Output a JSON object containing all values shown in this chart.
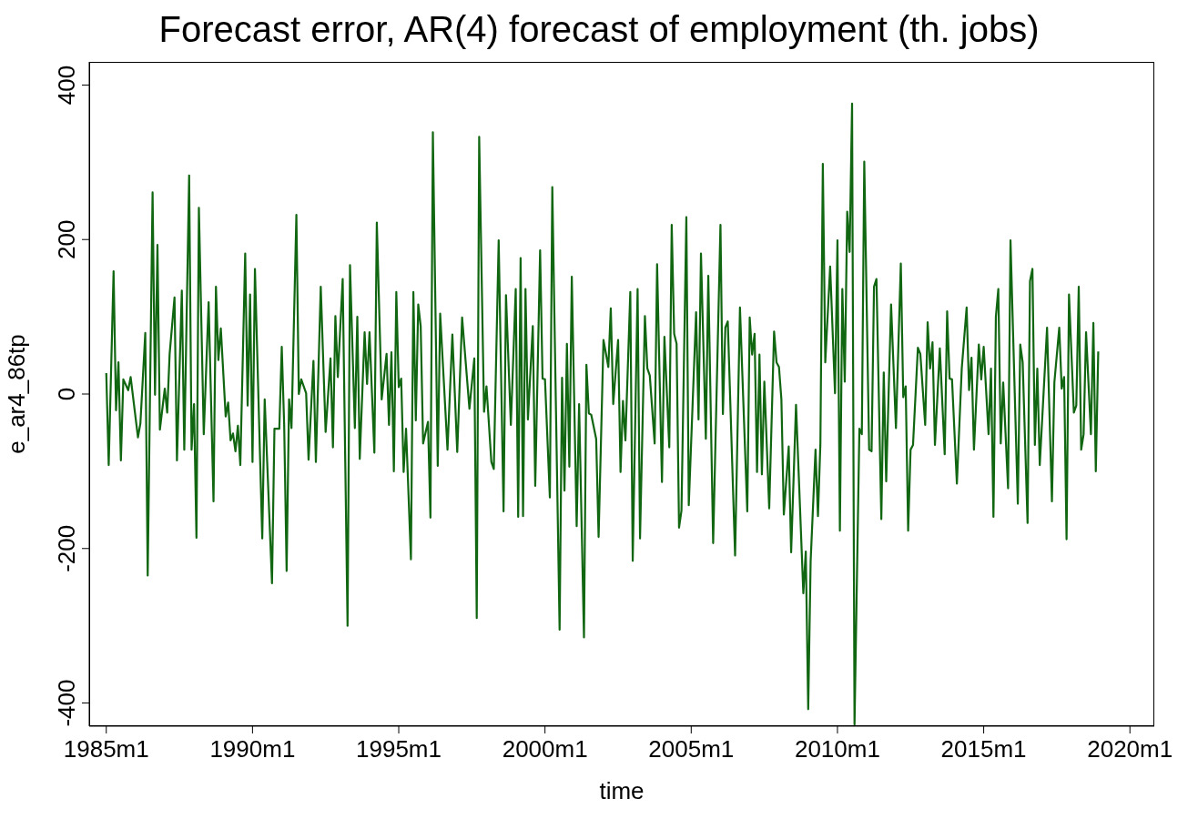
{
  "chart_data": {
    "type": "line",
    "title": "Forecast error, AR(4) forecast of employment (th. jobs)",
    "xlabel": "time",
    "ylabel": "e_ar4_86tp",
    "color": "#116611",
    "x": [
      "1985-01",
      "1985-02",
      "1985-04",
      "1985-05",
      "1985-06",
      "1985-07",
      "1985-08",
      "1985-10",
      "1985-11",
      "1986-02",
      "1986-03",
      "1986-05",
      "1986-06",
      "1986-08",
      "1986-09",
      "1986-10",
      "1986-11",
      "1987-01",
      "1987-02",
      "1987-03",
      "1987-05",
      "1987-06",
      "1987-08",
      "1987-09",
      "1987-11",
      "1987-12",
      "1988-01",
      "1988-02",
      "1988-03",
      "1988-05",
      "1988-07",
      "1988-09",
      "1988-10",
      "1988-11",
      "1988-12",
      "1989-02",
      "1989-03",
      "1989-04",
      "1989-05",
      "1989-06",
      "1989-07",
      "1989-08",
      "1989-10",
      "1989-11",
      "1989-12",
      "1990-01",
      "1990-02",
      "1990-05",
      "1990-06",
      "1990-09",
      "1990-10",
      "1990-12",
      "1991-01",
      "1991-02",
      "1991-03",
      "1991-04",
      "1991-05",
      "1991-07",
      "1991-08",
      "1991-09",
      "1991-11",
      "1991-12",
      "1992-02",
      "1992-03",
      "1992-05",
      "1992-07",
      "1992-09",
      "1992-10",
      "1992-11",
      "1992-12",
      "1993-02",
      "1993-04",
      "1993-05",
      "1993-07",
      "1993-08",
      "1993-09",
      "1993-11",
      "1993-12",
      "1994-01",
      "1994-03",
      "1994-04",
      "1994-06",
      "1994-08",
      "1994-09",
      "1994-10",
      "1994-11",
      "1994-12",
      "1995-01",
      "1995-02",
      "1995-03",
      "1995-04",
      "1995-06",
      "1995-07",
      "1995-08",
      "1995-09",
      "1995-10",
      "1995-11",
      "1996-01",
      "1996-02",
      "1996-03",
      "1996-05",
      "1996-06",
      "1996-09",
      "1996-11",
      "1997-01",
      "1997-03",
      "1997-06",
      "1997-08",
      "1997-09",
      "1997-10",
      "1997-12",
      "1998-01",
      "1998-03",
      "1998-04",
      "1998-06",
      "1998-08",
      "1998-09",
      "1998-11",
      "1999-01",
      "1999-02",
      "1999-03",
      "1999-04",
      "1999-05",
      "1999-06",
      "1999-08",
      "1999-09",
      "1999-11",
      "1999-12",
      "2000-01",
      "2000-03",
      "2000-04",
      "2000-07",
      "2000-08",
      "2000-09",
      "2000-10",
      "2000-11",
      "2000-12",
      "2001-02",
      "2001-03",
      "2001-05",
      "2001-06",
      "2001-07",
      "2001-08",
      "2001-10",
      "2001-11",
      "2002-01",
      "2002-03",
      "2002-04",
      "2002-05",
      "2002-07",
      "2002-08",
      "2002-09",
      "2002-10",
      "2002-12",
      "2003-01",
      "2003-03",
      "2003-04",
      "2003-06",
      "2003-07",
      "2003-08",
      "2003-10",
      "2003-11",
      "2004-01",
      "2004-02",
      "2004-04",
      "2004-05",
      "2004-06",
      "2004-07",
      "2004-08",
      "2004-09",
      "2004-11",
      "2004-12",
      "2005-03",
      "2005-04",
      "2005-05",
      "2005-07",
      "2005-08",
      "2005-10",
      "2006-01",
      "2006-02",
      "2006-03",
      "2006-04",
      "2006-07",
      "2006-09",
      "2006-12",
      "2007-01",
      "2007-02",
      "2007-03",
      "2007-04",
      "2007-05",
      "2007-06",
      "2007-07",
      "2007-09",
      "2007-11",
      "2007-12",
      "2008-01",
      "2008-02",
      "2008-03",
      "2008-05",
      "2008-06",
      "2008-08",
      "2008-11",
      "2008-12",
      "2009-01",
      "2009-02",
      "2009-04",
      "2009-05",
      "2009-06",
      "2009-07",
      "2009-08",
      "2009-10",
      "2009-12",
      "2010-01",
      "2010-02",
      "2010-03",
      "2010-04",
      "2010-05",
      "2010-06",
      "2010-07",
      "2010-08",
      "2010-10",
      "2010-11",
      "2010-12",
      "2011-02",
      "2011-03",
      "2011-04",
      "2011-05",
      "2011-07",
      "2011-08",
      "2011-09",
      "2011-11",
      "2012-01",
      "2012-03",
      "2012-04",
      "2012-05",
      "2012-06",
      "2012-07",
      "2012-08",
      "2012-10",
      "2012-11",
      "2013-01",
      "2013-02",
      "2013-03",
      "2013-04",
      "2013-05",
      "2013-07",
      "2013-09",
      "2013-10",
      "2013-11",
      "2013-12",
      "2014-02",
      "2014-04",
      "2014-06",
      "2014-07",
      "2014-08",
      "2014-09",
      "2014-11",
      "2014-12",
      "2015-01",
      "2015-03",
      "2015-04",
      "2015-05",
      "2015-06",
      "2015-07",
      "2015-08",
      "2015-09",
      "2015-11",
      "2015-12",
      "2016-03",
      "2016-04",
      "2016-05",
      "2016-07",
      "2016-08",
      "2016-09",
      "2016-10",
      "2016-11",
      "2016-12",
      "2017-03",
      "2017-05",
      "2017-06",
      "2017-08",
      "2017-09",
      "2017-10",
      "2017-11",
      "2017-12",
      "2018-02",
      "2018-03",
      "2018-04",
      "2018-05",
      "2018-06",
      "2018-07",
      "2018-09",
      "2018-10",
      "2018-11",
      "2018-12"
    ],
    "values": [
      27,
      -92,
      159,
      -21,
      41,
      -86,
      19,
      5,
      22,
      -56,
      -38,
      79,
      -235,
      261,
      -1,
      193,
      -46,
      7,
      -24,
      52,
      125,
      -86,
      134,
      -72,
      283,
      -72,
      -13,
      -186,
      241,
      -52,
      119,
      -139,
      139,
      44,
      85,
      -29,
      -11,
      -60,
      -51,
      -74,
      -41,
      -92,
      182,
      -15,
      129,
      -88,
      162,
      -187,
      -7,
      -245,
      -45,
      -45,
      61,
      -41,
      -229,
      -7,
      -44,
      232,
      0,
      19,
      1,
      -85,
      43,
      -88,
      139,
      -49,
      46,
      -69,
      101,
      22,
      149,
      -300,
      167,
      -44,
      100,
      -84,
      80,
      13,
      80,
      -76,
      222,
      -7,
      52,
      -40,
      54,
      -100,
      132,
      9,
      20,
      -101,
      -45,
      -214,
      132,
      -34,
      116,
      88,
      -64,
      -36,
      -160,
      339,
      -93,
      104,
      -72,
      77,
      -75,
      99,
      -19,
      46,
      -290,
      333,
      -23,
      10,
      -88,
      -97,
      199,
      -152,
      128,
      -40,
      136,
      -159,
      176,
      -158,
      136,
      -33,
      88,
      -119,
      186,
      20,
      19,
      -134,
      268,
      -305,
      21,
      -125,
      65,
      -94,
      152,
      -171,
      -13,
      -315,
      38,
      -25,
      -27,
      -58,
      -185,
      70,
      35,
      111,
      -13,
      70,
      -101,
      -9,
      -60,
      132,
      -216,
      136,
      -187,
      101,
      33,
      24,
      -64,
      168,
      -114,
      74,
      -69,
      219,
      78,
      65,
      -173,
      -151,
      229,
      -144,
      106,
      -33,
      182,
      -58,
      153,
      -193,
      219,
      -26,
      86,
      94,
      -209,
      112,
      -152,
      99,
      51,
      78,
      -101,
      51,
      -104,
      16,
      -148,
      81,
      41,
      35,
      -7,
      -156,
      -68,
      -205,
      -14,
      -258,
      -204,
      -408,
      -216,
      -72,
      -158,
      -64,
      298,
      41,
      165,
      1,
      199,
      -177,
      136,
      16,
      236,
      184,
      376,
      -428,
      -45,
      -52,
      301,
      -72,
      -74,
      139,
      149,
      -162,
      28,
      -113,
      116,
      -44,
      169,
      -4,
      10,
      -177,
      -72,
      -66,
      60,
      52,
      -40,
      93,
      33,
      67,
      -66,
      59,
      -78,
      107,
      20,
      19,
      -116,
      33,
      112,
      5,
      47,
      -72,
      64,
      19,
      61,
      -52,
      33,
      -159,
      100,
      136,
      -64,
      15,
      -122,
      199,
      -142,
      64,
      41,
      -167,
      146,
      162,
      -66,
      33,
      -92,
      86,
      -139,
      15,
      86,
      7,
      22,
      -188,
      129,
      -24,
      -15,
      139,
      -72,
      -52,
      80,
      -52,
      92,
      -100,
      55
    ],
    "xlim": [
      "1984-06",
      "2020-11"
    ],
    "ylim": [
      -430,
      430
    ],
    "xticks": [
      {
        "value": "1985-01",
        "label": "1985m1"
      },
      {
        "value": "1990-01",
        "label": "1990m1"
      },
      {
        "value": "1995-01",
        "label": "1995m1"
      },
      {
        "value": "2000-01",
        "label": "2000m1"
      },
      {
        "value": "2005-01",
        "label": "2005m1"
      },
      {
        "value": "2010-01",
        "label": "2010m1"
      },
      {
        "value": "2015-01",
        "label": "2015m1"
      },
      {
        "value": "2020-01",
        "label": "2020m1"
      }
    ],
    "yticks": [
      -400,
      -200,
      0,
      200,
      400
    ]
  }
}
